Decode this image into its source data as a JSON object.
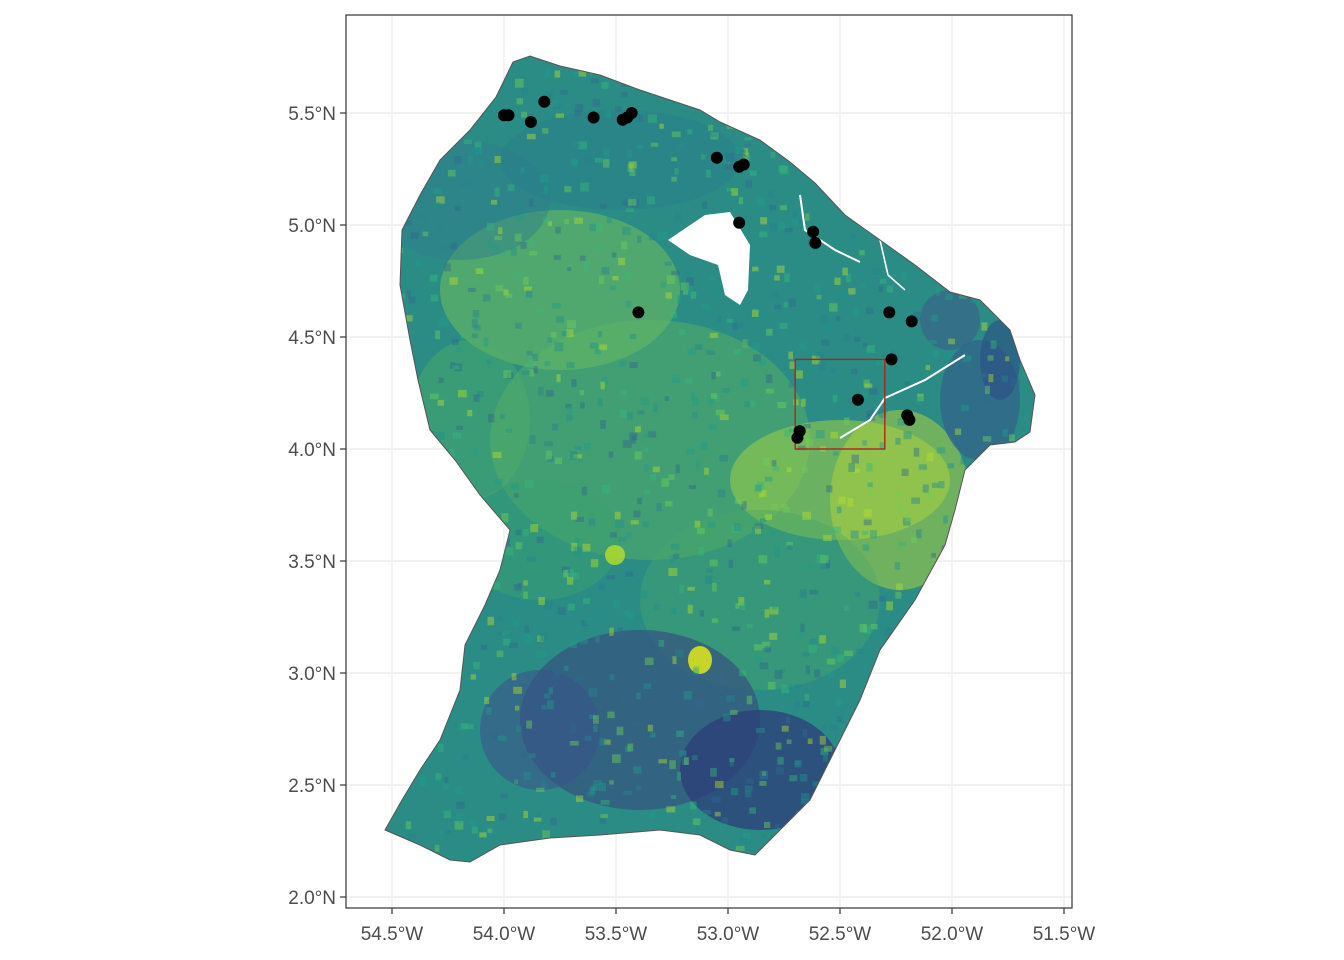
{
  "chart_data": {
    "type": "map",
    "region": "French Guiana",
    "title": "",
    "xlabel": "",
    "ylabel": "",
    "xlim": [
      -54.7,
      -51.5
    ],
    "ylim": [
      1.95,
      5.9
    ],
    "grid": true,
    "x_ticks": [
      {
        "value": -54.5,
        "label": "54.5°W"
      },
      {
        "value": -54.0,
        "label": "54.0°W"
      },
      {
        "value": -53.5,
        "label": "53.5°W"
      },
      {
        "value": -53.0,
        "label": "53.0°W"
      },
      {
        "value": -52.5,
        "label": "52.5°W"
      },
      {
        "value": -52.0,
        "label": "52.0°W"
      },
      {
        "value": -51.5,
        "label": "51.5°W"
      }
    ],
    "y_ticks": [
      {
        "value": 2.0,
        "label": "2.0°N"
      },
      {
        "value": 2.5,
        "label": "2.5°N"
      },
      {
        "value": 3.0,
        "label": "3.0°N"
      },
      {
        "value": 3.5,
        "label": "3.5°N"
      },
      {
        "value": 4.0,
        "label": "4.0°N"
      },
      {
        "value": 4.5,
        "label": "4.5°N"
      },
      {
        "value": 5.0,
        "label": "5.0°N"
      },
      {
        "value": 5.5,
        "label": "5.5°N"
      }
    ],
    "raster_palette": "viridis",
    "colors": {
      "panel_border": "#333333",
      "grid": "#ebebeb",
      "points": "#000000",
      "box": "#b2221c",
      "outline": "#555555"
    },
    "highlight_box": {
      "lon": [
        -52.7,
        -52.3
      ],
      "lat": [
        4.0,
        4.4
      ]
    },
    "points": [
      {
        "lon": -54.0,
        "lat": 5.49
      },
      {
        "lon": -53.98,
        "lat": 5.49
      },
      {
        "lon": -53.82,
        "lat": 5.55
      },
      {
        "lon": -53.88,
        "lat": 5.46
      },
      {
        "lon": -53.6,
        "lat": 5.48
      },
      {
        "lon": -53.47,
        "lat": 5.47
      },
      {
        "lon": -53.43,
        "lat": 5.5
      },
      {
        "lon": -53.45,
        "lat": 5.48
      },
      {
        "lon": -53.05,
        "lat": 5.3
      },
      {
        "lon": -52.93,
        "lat": 5.27
      },
      {
        "lon": -52.95,
        "lat": 5.26
      },
      {
        "lon": -52.95,
        "lat": 5.01
      },
      {
        "lon": -52.62,
        "lat": 4.97
      },
      {
        "lon": -52.61,
        "lat": 4.92
      },
      {
        "lon": -52.28,
        "lat": 4.61
      },
      {
        "lon": -52.18,
        "lat": 4.57
      },
      {
        "lon": -52.27,
        "lat": 4.4
      },
      {
        "lon": -52.42,
        "lat": 4.22
      },
      {
        "lon": -52.2,
        "lat": 4.15
      },
      {
        "lon": -52.19,
        "lat": 4.13
      },
      {
        "lon": -52.68,
        "lat": 4.08
      },
      {
        "lon": -52.69,
        "lat": 4.05
      },
      {
        "lon": -53.4,
        "lat": 4.61
      }
    ]
  }
}
